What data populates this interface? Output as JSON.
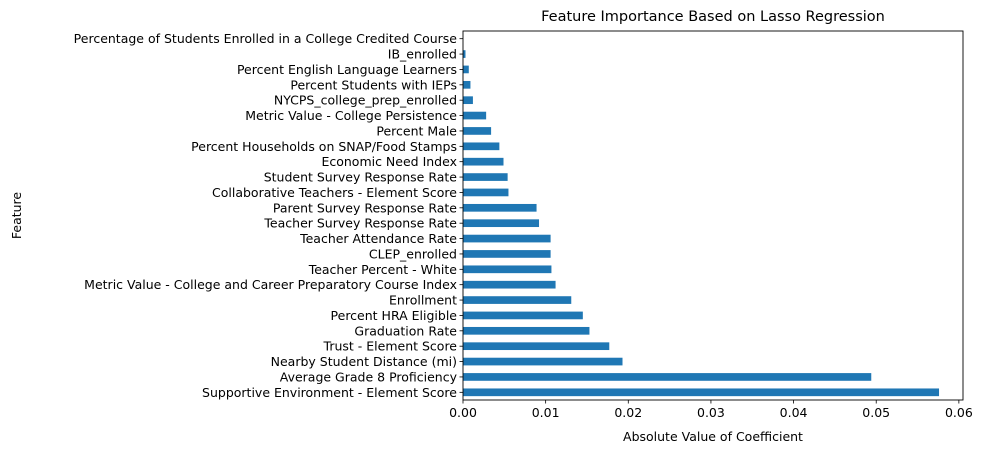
{
  "chart_data": {
    "type": "bar",
    "orientation": "horizontal",
    "title": "Feature Importance Based on Lasso Regression",
    "xlabel": "Absolute Value of Coefficient",
    "ylabel": "Feature",
    "xlim": [
      0,
      0.0605
    ],
    "xticks": [
      "0.00",
      "0.01",
      "0.02",
      "0.03",
      "0.04",
      "0.05",
      "0.06"
    ],
    "grid": false,
    "legend": "none",
    "bar_color": "#1f77b4",
    "categories": [
      "Supportive Environment - Element Score",
      "Average Grade 8 Proficiency",
      "Nearby Student Distance (mi)",
      "Trust - Element Score",
      "Graduation Rate",
      "Percent HRA Eligible",
      "Enrollment",
      "Metric Value - College and Career Preparatory Course Index",
      "Teacher Percent - White",
      "CLEP_enrolled",
      "Teacher Attendance Rate",
      "Teacher Survey Response Rate",
      "Parent Survey Response Rate",
      "Collaborative Teachers - Element Score",
      "Student Survey Response Rate",
      "Economic Need Index",
      "Percent Households on SNAP/Food Stamps",
      "Percent Male",
      "Metric Value - College Persistence",
      "NYCPS_college_prep_enrolled",
      "Percent Students with IEPs",
      "Percent English Language Learners",
      "IB_enrolled",
      "Percentage of Students Enrolled in a College Credited Course"
    ],
    "values": [
      0.0576,
      0.0494,
      0.0193,
      0.0177,
      0.0153,
      0.0145,
      0.0131,
      0.0112,
      0.0107,
      0.0106,
      0.0106,
      0.0092,
      0.0089,
      0.0055,
      0.0054,
      0.0049,
      0.0044,
      0.0034,
      0.0028,
      0.0012,
      0.0009,
      0.0007,
      0.0003,
      0.0
    ]
  }
}
